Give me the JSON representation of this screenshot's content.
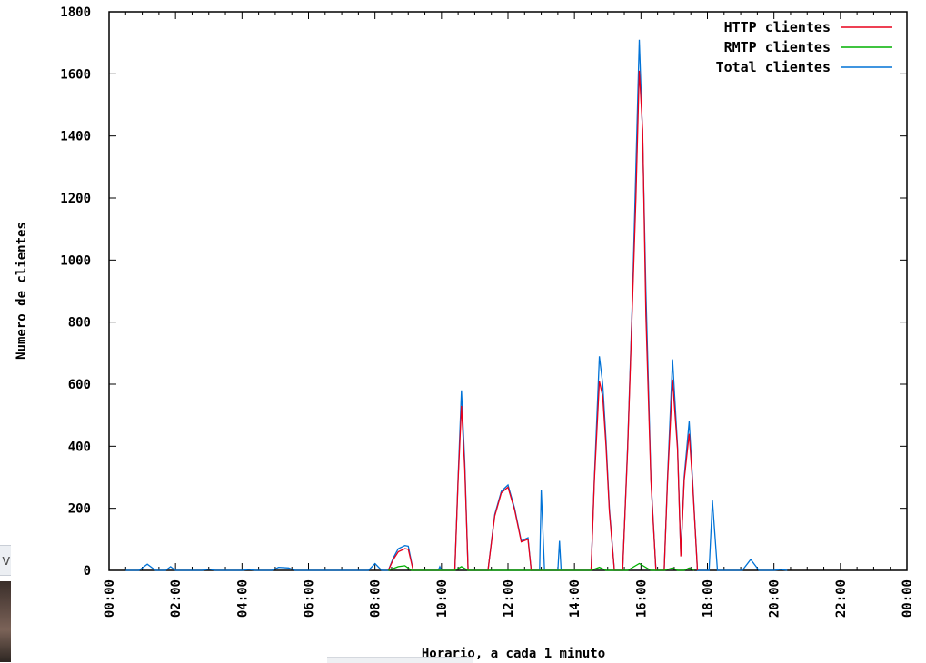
{
  "chart_data": {
    "type": "line",
    "title": "",
    "xlabel": "Horario, a cada 1 minuto",
    "ylabel": "Numero de clientes",
    "xlim": [
      0,
      24
    ],
    "ylim": [
      0,
      1800
    ],
    "y_ticks": [
      0,
      200,
      400,
      600,
      800,
      1000,
      1200,
      1400,
      1600,
      1800
    ],
    "y_tick_labels": [
      "0",
      "200",
      "400",
      "600",
      "800",
      "1000",
      "1200",
      "1400",
      "1600",
      "1800"
    ],
    "x_ticks": [
      0,
      2,
      4,
      6,
      8,
      10,
      12,
      14,
      16,
      18,
      20,
      22,
      24
    ],
    "x_tick_labels": [
      "00:00",
      "02:00",
      "04:00",
      "06:00",
      "08:00",
      "10:00",
      "12:00",
      "14:00",
      "16:00",
      "18:00",
      "20:00",
      "22:00",
      "00:00"
    ],
    "legend_position": "top-right",
    "series": [
      {
        "name": "Total clientes",
        "color": "#0072d6",
        "points": [
          [
            0.5,
            0
          ],
          [
            0.9,
            0
          ],
          [
            1.15,
            20
          ],
          [
            1.4,
            0
          ],
          [
            1.7,
            0
          ],
          [
            1.85,
            12
          ],
          [
            2.0,
            0
          ],
          [
            2.8,
            0
          ],
          [
            3.0,
            4
          ],
          [
            3.2,
            0
          ],
          [
            4.0,
            0
          ],
          [
            4.2,
            3
          ],
          [
            4.4,
            0
          ],
          [
            4.9,
            0
          ],
          [
            5.1,
            10
          ],
          [
            5.4,
            8
          ],
          [
            5.6,
            0
          ],
          [
            7.8,
            0
          ],
          [
            8.0,
            22
          ],
          [
            8.2,
            0
          ],
          [
            8.4,
            0
          ],
          [
            8.55,
            40
          ],
          [
            8.7,
            70
          ],
          [
            8.9,
            80
          ],
          [
            9.0,
            78
          ],
          [
            9.15,
            0
          ],
          [
            9.9,
            0
          ],
          [
            9.95,
            12
          ],
          [
            10.0,
            0
          ],
          [
            10.4,
            0
          ],
          [
            10.5,
            300
          ],
          [
            10.6,
            580
          ],
          [
            10.7,
            350
          ],
          [
            10.8,
            0
          ],
          [
            11.4,
            0
          ],
          [
            11.6,
            180
          ],
          [
            11.8,
            255
          ],
          [
            12.0,
            275
          ],
          [
            12.2,
            200
          ],
          [
            12.4,
            95
          ],
          [
            12.6,
            105
          ],
          [
            12.7,
            0
          ],
          [
            12.95,
            0
          ],
          [
            13.0,
            260
          ],
          [
            13.1,
            0
          ],
          [
            13.5,
            0
          ],
          [
            13.55,
            95
          ],
          [
            13.6,
            0
          ],
          [
            14.5,
            0
          ],
          [
            14.6,
            300
          ],
          [
            14.75,
            690
          ],
          [
            14.85,
            600
          ],
          [
            14.95,
            420
          ],
          [
            15.05,
            200
          ],
          [
            15.2,
            0
          ],
          [
            15.45,
            0
          ],
          [
            15.6,
            400
          ],
          [
            15.75,
            900
          ],
          [
            15.85,
            1300
          ],
          [
            15.95,
            1710
          ],
          [
            16.05,
            1400
          ],
          [
            16.15,
            900
          ],
          [
            16.3,
            300
          ],
          [
            16.45,
            0
          ],
          [
            16.7,
            0
          ],
          [
            16.8,
            300
          ],
          [
            16.95,
            680
          ],
          [
            17.1,
            400
          ],
          [
            17.2,
            50
          ],
          [
            17.3,
            300
          ],
          [
            17.45,
            480
          ],
          [
            17.55,
            300
          ],
          [
            17.7,
            0
          ],
          [
            18.05,
            0
          ],
          [
            18.15,
            225
          ],
          [
            18.3,
            0
          ],
          [
            19.05,
            0
          ],
          [
            19.3,
            35
          ],
          [
            19.55,
            0
          ],
          [
            20.0,
            0
          ],
          [
            20.2,
            3
          ],
          [
            20.4,
            0
          ]
        ]
      },
      {
        "name": "HTTP clientes",
        "color": "#e8001c",
        "points": [
          [
            8.4,
            0
          ],
          [
            8.55,
            35
          ],
          [
            8.7,
            60
          ],
          [
            8.9,
            70
          ],
          [
            9.0,
            68
          ],
          [
            9.15,
            0
          ],
          [
            10.4,
            0
          ],
          [
            10.5,
            290
          ],
          [
            10.6,
            530
          ],
          [
            10.7,
            330
          ],
          [
            10.8,
            0
          ],
          [
            11.4,
            0
          ],
          [
            11.6,
            175
          ],
          [
            11.8,
            250
          ],
          [
            12.0,
            268
          ],
          [
            12.2,
            195
          ],
          [
            12.4,
            92
          ],
          [
            12.6,
            100
          ],
          [
            12.7,
            0
          ],
          [
            14.5,
            0
          ],
          [
            14.6,
            290
          ],
          [
            14.75,
            610
          ],
          [
            14.85,
            560
          ],
          [
            14.95,
            400
          ],
          [
            15.05,
            190
          ],
          [
            15.2,
            0
          ],
          [
            15.45,
            0
          ],
          [
            15.6,
            390
          ],
          [
            15.75,
            880
          ],
          [
            15.85,
            1200
          ],
          [
            15.95,
            1610
          ],
          [
            16.05,
            1420
          ],
          [
            16.15,
            820
          ],
          [
            16.3,
            290
          ],
          [
            16.45,
            0
          ],
          [
            16.7,
            0
          ],
          [
            16.8,
            290
          ],
          [
            16.95,
            615
          ],
          [
            17.1,
            390
          ],
          [
            17.2,
            45
          ],
          [
            17.3,
            290
          ],
          [
            17.45,
            440
          ],
          [
            17.55,
            290
          ],
          [
            17.7,
            0
          ]
        ]
      },
      {
        "name": "RMTP clientes",
        "color": "#00b000",
        "points": [
          [
            8.4,
            0
          ],
          [
            8.7,
            12
          ],
          [
            8.9,
            15
          ],
          [
            9.1,
            0
          ],
          [
            10.4,
            0
          ],
          [
            10.6,
            12
          ],
          [
            10.8,
            0
          ],
          [
            14.5,
            0
          ],
          [
            14.75,
            10
          ],
          [
            14.95,
            0
          ],
          [
            15.6,
            0
          ],
          [
            15.95,
            22
          ],
          [
            16.3,
            0
          ],
          [
            16.7,
            0
          ],
          [
            16.95,
            8
          ],
          [
            17.1,
            0
          ],
          [
            17.3,
            0
          ],
          [
            17.45,
            8
          ],
          [
            17.6,
            0
          ]
        ]
      }
    ]
  }
}
